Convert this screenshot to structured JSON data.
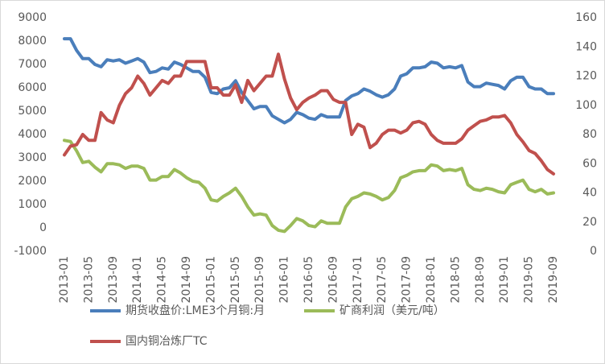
{
  "chart_data": {
    "type": "line",
    "categories": [
      "2013-01",
      null,
      null,
      null,
      "2013-05",
      null,
      null,
      null,
      "2013-09",
      null,
      null,
      null,
      "2014-01",
      null,
      null,
      null,
      "2014-05",
      null,
      null,
      null,
      "2014-09",
      null,
      null,
      null,
      "2015-01",
      null,
      null,
      null,
      "2015-05",
      null,
      null,
      null,
      "2015-09",
      null,
      null,
      null,
      "2016-01",
      null,
      null,
      null,
      "2016-05",
      null,
      null,
      null,
      "2016-09",
      null,
      null,
      null,
      "2017-01",
      null,
      null,
      null,
      "2017-05",
      null,
      null,
      null,
      "2017-09",
      null,
      null,
      null,
      "2018-01",
      null,
      null,
      null,
      "2018-05",
      null,
      null,
      null,
      "2018-09",
      null,
      null,
      null,
      "2019-01",
      null,
      null,
      null,
      "2019-05",
      null,
      null,
      null,
      "2019-09"
    ],
    "series": [
      {
        "name": "期货收盘价:LME3个月铜:月",
        "color": "#4a7ebb",
        "values": [
          8100,
          8100,
          7600,
          7250,
          7250,
          7000,
          6900,
          7200,
          7150,
          7200,
          7050,
          7150,
          7250,
          7100,
          6650,
          6700,
          6850,
          6800,
          7100,
          7000,
          6850,
          6700,
          6700,
          6450,
          5800,
          5750,
          5950,
          6000,
          6300,
          5800,
          5450,
          5100,
          5200,
          5200,
          4800,
          4650,
          4500,
          4650,
          4950,
          4850,
          4700,
          4650,
          4850,
          4750,
          4750,
          4750,
          5450,
          5650,
          5750,
          5950,
          5850,
          5700,
          5600,
          5700,
          5950,
          6500,
          6600,
          6850,
          6850,
          6900,
          7100,
          7050,
          6850,
          6900,
          6850,
          6950,
          6250,
          6050,
          6050,
          6200,
          6150,
          6100,
          5950,
          6300,
          6450,
          6450,
          6050,
          5950,
          5950,
          5750,
          5750
        ]
      },
      {
        "name": "矿商利润（美元/吨）",
        "color": "#9bbb59",
        "values": [
          3750,
          3700,
          3300,
          2800,
          2850,
          2600,
          2400,
          2750,
          2750,
          2700,
          2550,
          2650,
          2650,
          2550,
          2050,
          2050,
          2200,
          2200,
          2500,
          2350,
          2150,
          2000,
          1950,
          1700,
          1200,
          1150,
          1350,
          1500,
          1700,
          1350,
          900,
          550,
          600,
          550,
          100,
          -100,
          -150,
          100,
          400,
          300,
          100,
          50,
          300,
          200,
          200,
          200,
          900,
          1250,
          1350,
          1500,
          1450,
          1350,
          1200,
          1300,
          1600,
          2150,
          2250,
          2400,
          2450,
          2450,
          2700,
          2650,
          2450,
          2500,
          2450,
          2550,
          1850,
          1650,
          1600,
          1700,
          1650,
          1550,
          1500,
          1850,
          1950,
          2050,
          1650,
          1550,
          1650,
          1450,
          1500
        ]
      },
      {
        "name": "国内铜冶炼厂TC",
        "color": "#c0504d",
        "axis": "y2",
        "values": [
          66,
          72,
          73,
          80,
          76,
          76,
          95,
          90,
          88,
          100,
          108,
          112,
          120,
          115,
          107,
          112,
          117,
          115,
          120,
          120,
          130,
          130,
          130,
          130,
          112,
          112,
          107,
          107,
          114,
          102,
          117,
          110,
          115,
          120,
          120,
          135,
          118,
          105,
          97,
          102,
          105,
          107,
          110,
          110,
          104,
          102,
          102,
          80,
          87,
          85,
          71,
          74,
          80,
          83,
          83,
          81,
          83,
          88,
          89,
          87,
          80,
          76,
          74,
          74,
          74,
          77,
          83,
          86,
          89,
          90,
          92,
          92,
          93,
          88,
          80,
          75,
          69,
          67,
          62,
          56,
          53
        ]
      }
    ],
    "ylim": [
      -1000,
      9000
    ],
    "yticks": [
      -1000,
      0,
      1000,
      2000,
      3000,
      4000,
      5000,
      6000,
      7000,
      8000,
      9000
    ],
    "y2lim": [
      0,
      160
    ],
    "y2ticks": [
      0,
      20,
      40,
      60,
      80,
      100,
      120,
      140,
      160
    ],
    "grid": false,
    "legend": "bottom"
  }
}
